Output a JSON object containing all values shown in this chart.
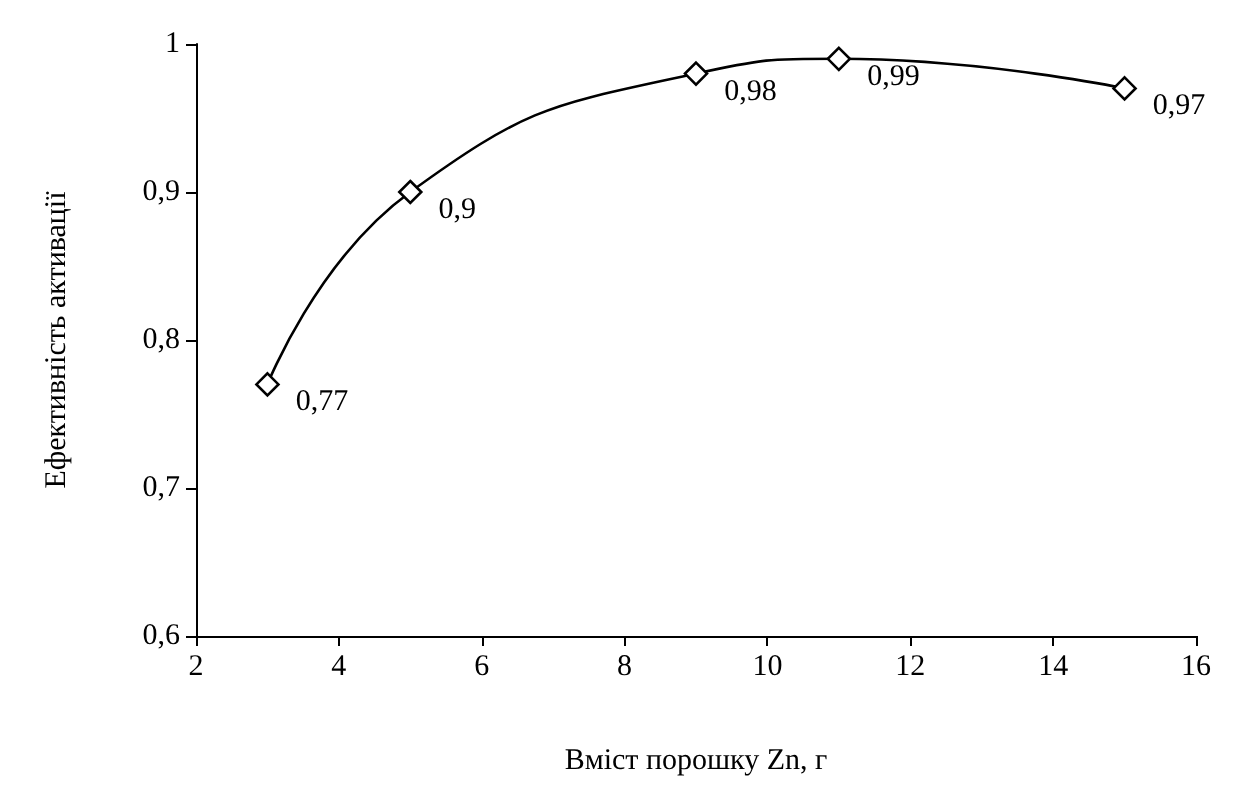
{
  "chart_data": {
    "type": "line",
    "xlabel": "Вміст порошку Zn, г",
    "ylabel": "Ефективність активації",
    "x": [
      3,
      5,
      9,
      11,
      15
    ],
    "series": [
      {
        "color": "#000000",
        "values": [
          0.77,
          0.9,
          0.98,
          0.99,
          0.97
        ],
        "value_labels": [
          "0,77",
          "0,9",
          "0,98",
          "0,99",
          "0,97"
        ]
      }
    ],
    "xlim": [
      2,
      16
    ],
    "xticks": [
      2,
      4,
      6,
      8,
      10,
      12,
      14,
      16
    ],
    "ylim": [
      0.6,
      1
    ],
    "yticks": [
      {
        "value": 0.6,
        "label": "0,6"
      },
      {
        "value": 0.7,
        "label": "0,7"
      },
      {
        "value": 0.8,
        "label": "0,8"
      },
      {
        "value": 0.9,
        "label": "0,9"
      },
      {
        "value": 1,
        "label": "1"
      }
    ],
    "grid": false,
    "marker": "diamond",
    "line_style": "solid"
  }
}
